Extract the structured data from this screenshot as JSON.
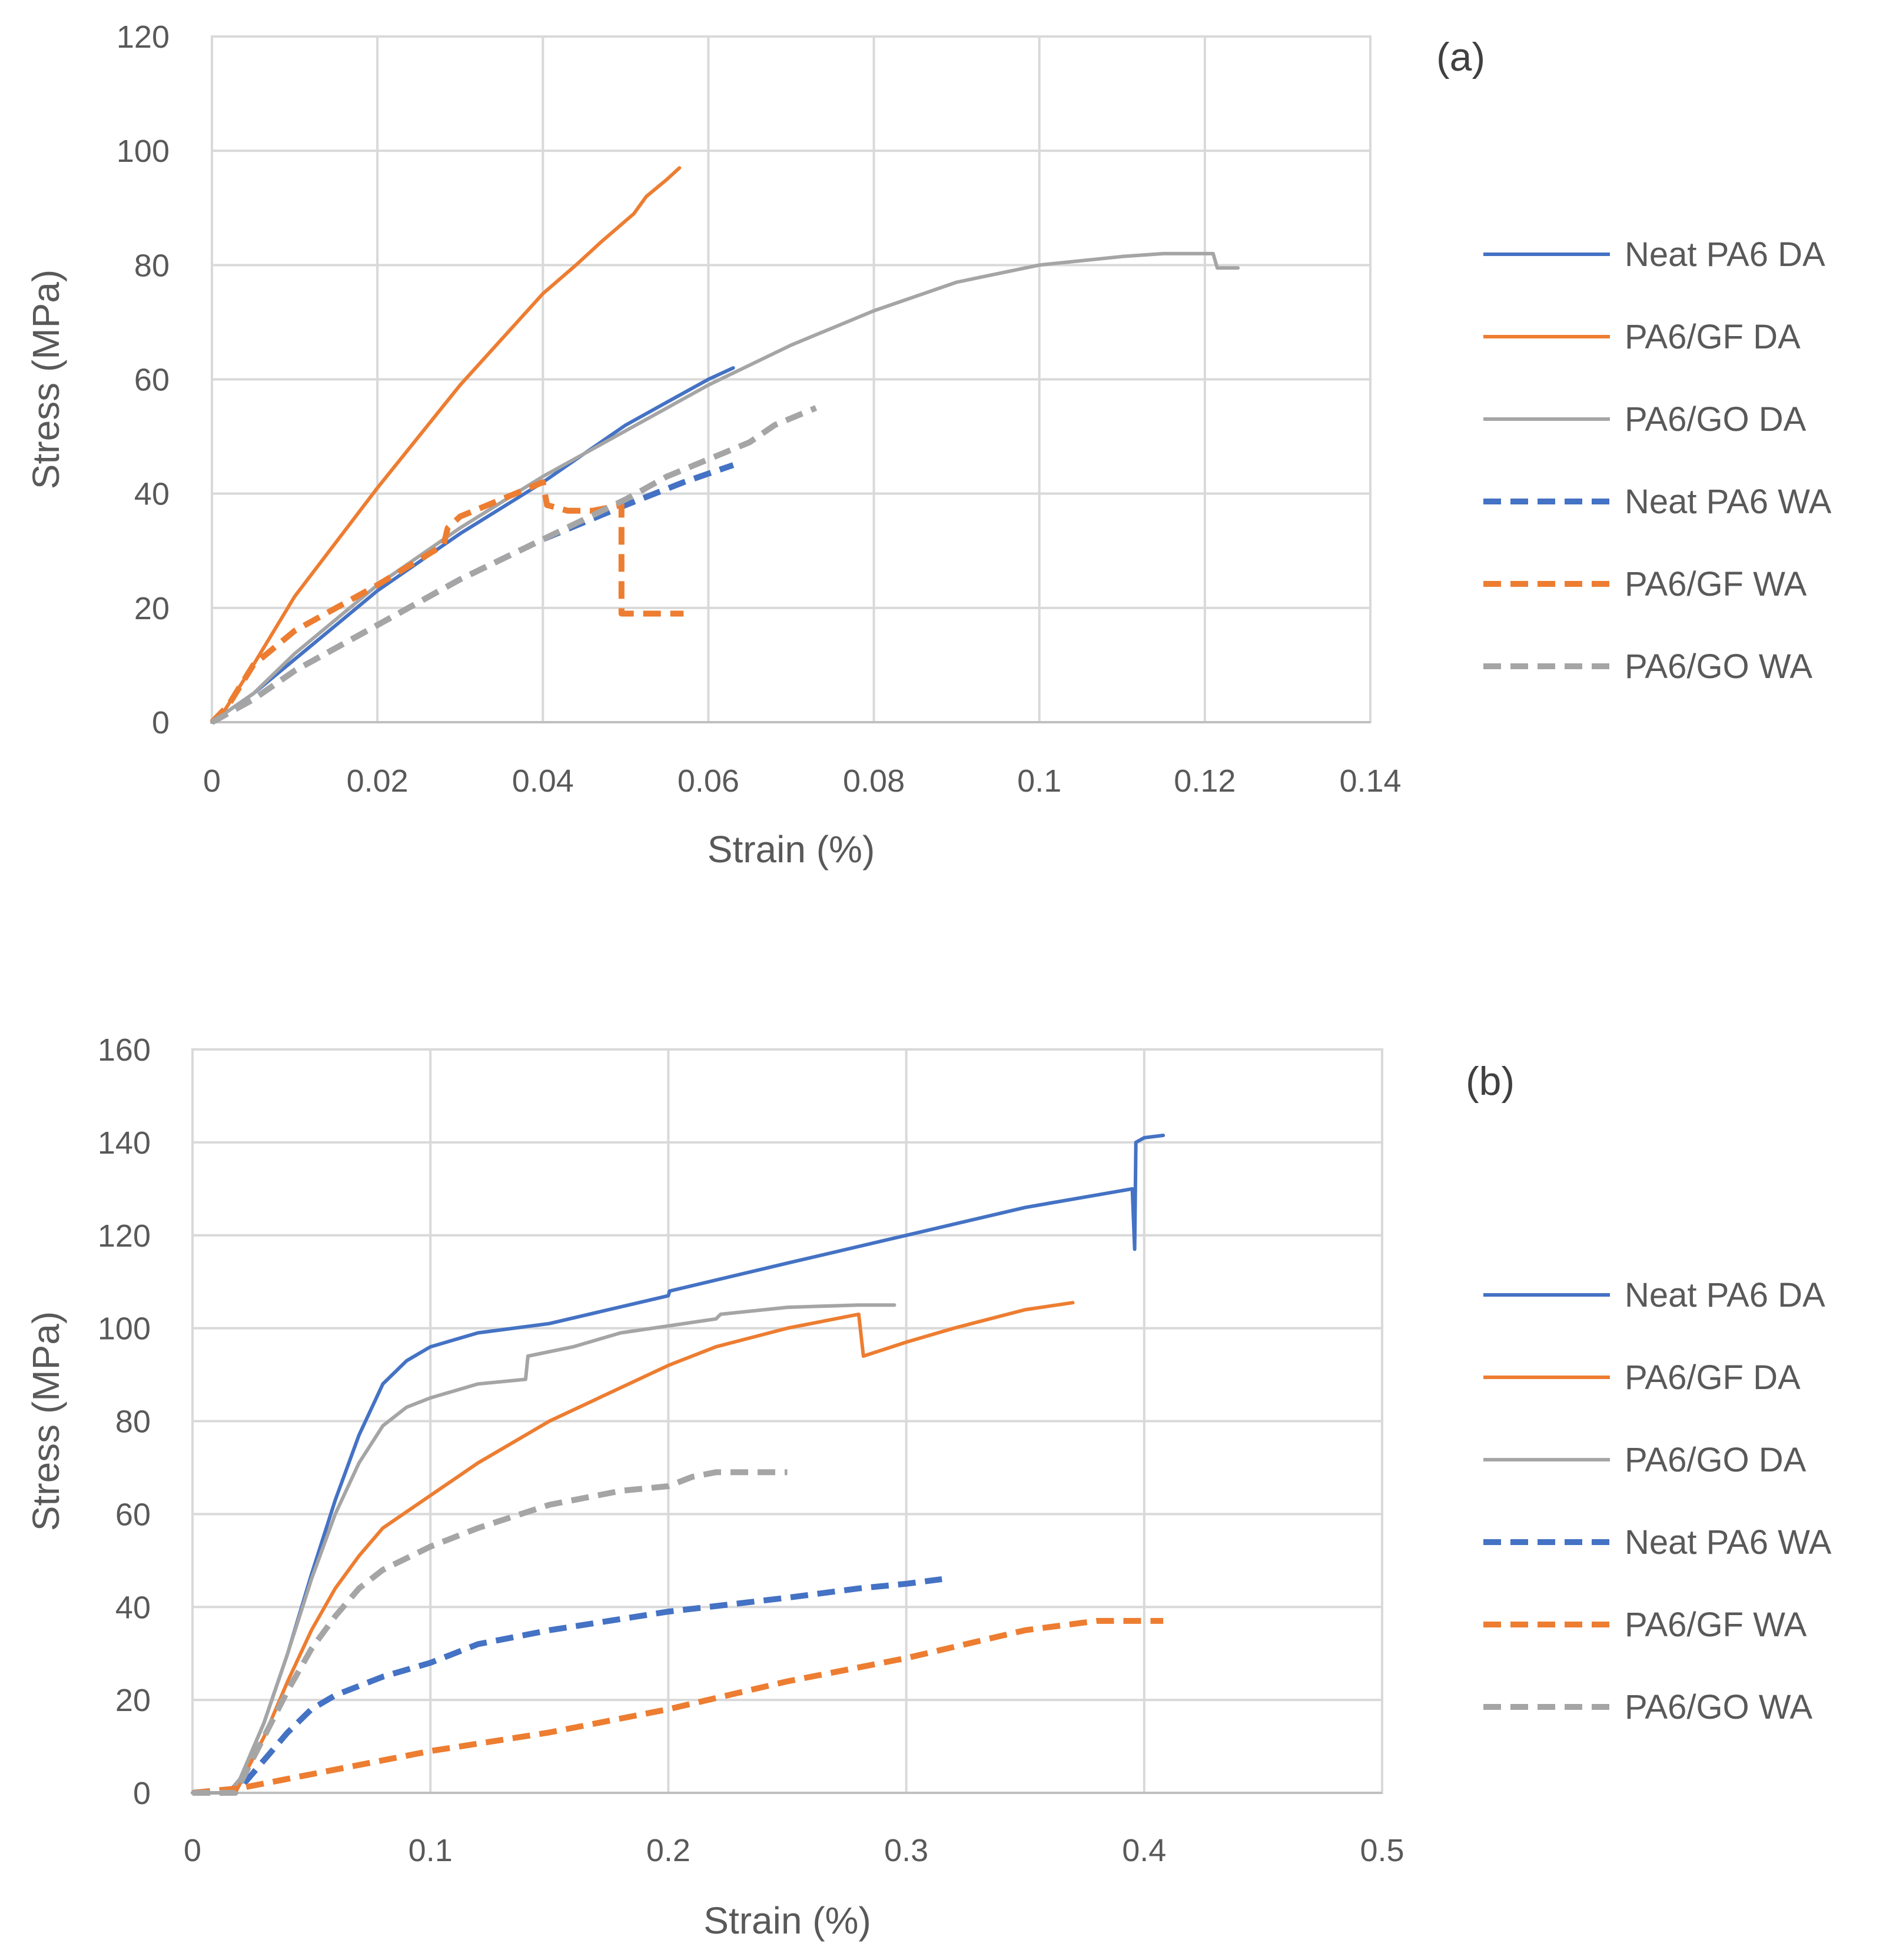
{
  "chart_data": [
    {
      "type": "line",
      "panel_label": "(a)",
      "xlabel": "Strain (%)",
      "ylabel": "Stress (MPa)",
      "xlim": [
        0,
        0.14
      ],
      "ylim": [
        0,
        120
      ],
      "xticks": [
        0,
        0.02,
        0.04,
        0.06,
        0.08,
        0.1,
        0.12,
        0.14
      ],
      "yticks": [
        0,
        20,
        40,
        60,
        80,
        100,
        120
      ],
      "xtick_labels": [
        "0",
        "0.02",
        "0.04",
        "0.06",
        "0.08",
        "0.1",
        "0.12",
        "0.14"
      ],
      "ytick_labels": [
        "0",
        "20",
        "40",
        "60",
        "80",
        "100",
        "120"
      ],
      "grid": true,
      "legend_position": "right",
      "series": [
        {
          "name": "Neat PA6 DA",
          "color": "#4472C4",
          "dash": false,
          "points": [
            [
              0,
              0
            ],
            [
              0.005,
              5
            ],
            [
              0.01,
              11
            ],
            [
              0.015,
              17
            ],
            [
              0.02,
              23
            ],
            [
              0.03,
              33
            ],
            [
              0.04,
              42
            ],
            [
              0.045,
              47
            ],
            [
              0.05,
              52
            ],
            [
              0.055,
              56
            ],
            [
              0.06,
              60
            ],
            [
              0.063,
              62
            ]
          ]
        },
        {
          "name": "PA6/GF DA",
          "color": "#ED7D31",
          "dash": false,
          "points": [
            [
              0,
              0
            ],
            [
              0.0015,
              2
            ],
            [
              0.005,
              10
            ],
            [
              0.01,
              22
            ],
            [
              0.02,
              41
            ],
            [
              0.03,
              59
            ],
            [
              0.04,
              75
            ],
            [
              0.044,
              80
            ],
            [
              0.047,
              84
            ],
            [
              0.051,
              89
            ],
            [
              0.0515,
              90
            ],
            [
              0.0525,
              92
            ],
            [
              0.055,
              95
            ],
            [
              0.0565,
              97
            ]
          ]
        },
        {
          "name": "PA6/GO DA",
          "color": "#A5A5A5",
          "dash": false,
          "points": [
            [
              0,
              0
            ],
            [
              0.005,
              5
            ],
            [
              0.01,
              12
            ],
            [
              0.02,
              24
            ],
            [
              0.03,
              34
            ],
            [
              0.04,
              43
            ],
            [
              0.05,
              51
            ],
            [
              0.06,
              59
            ],
            [
              0.07,
              66
            ],
            [
              0.08,
              72
            ],
            [
              0.09,
              77
            ],
            [
              0.1,
              80
            ],
            [
              0.11,
              81.5
            ],
            [
              0.115,
              82
            ],
            [
              0.121,
              82
            ],
            [
              0.1215,
              79.5
            ],
            [
              0.124,
              79.5
            ]
          ]
        },
        {
          "name": "Neat PA6 WA",
          "color": "#4472C4",
          "dash": true,
          "points": [
            [
              0,
              0
            ],
            [
              0.005,
              4
            ],
            [
              0.01,
              9
            ],
            [
              0.02,
              17
            ],
            [
              0.03,
              25
            ],
            [
              0.04,
              32
            ],
            [
              0.05,
              38
            ],
            [
              0.057,
              42
            ],
            [
              0.063,
              45
            ]
          ]
        },
        {
          "name": "PA6/GF WA",
          "color": "#ED7D31",
          "dash": true,
          "points": [
            [
              0,
              0
            ],
            [
              0.002,
              3
            ],
            [
              0.005,
              10
            ],
            [
              0.01,
              16
            ],
            [
              0.02,
              24
            ],
            [
              0.028,
              31
            ],
            [
              0.0285,
              34
            ],
            [
              0.03,
              36
            ],
            [
              0.035,
              39
            ],
            [
              0.04,
              42
            ],
            [
              0.0405,
              38
            ],
            [
              0.043,
              37
            ],
            [
              0.046,
              37
            ],
            [
              0.0495,
              38
            ],
            [
              0.0495,
              19
            ],
            [
              0.057,
              19
            ]
          ]
        },
        {
          "name": "PA6/GO WA",
          "color": "#A5A5A5",
          "dash": true,
          "points": [
            [
              0,
              0
            ],
            [
              0.005,
              4
            ],
            [
              0.01,
              9
            ],
            [
              0.02,
              17
            ],
            [
              0.03,
              25
            ],
            [
              0.04,
              32
            ],
            [
              0.05,
              39
            ],
            [
              0.055,
              43
            ],
            [
              0.06,
              46
            ],
            [
              0.065,
              49
            ],
            [
              0.068,
              52
            ],
            [
              0.073,
              55
            ]
          ]
        }
      ]
    },
    {
      "type": "line",
      "panel_label": "(b)",
      "xlabel": "Strain (%)",
      "ylabel": "Stress (MPa)",
      "xlim": [
        0,
        0.5
      ],
      "ylim": [
        0,
        160
      ],
      "xticks": [
        0,
        0.1,
        0.2,
        0.3,
        0.4,
        0.5
      ],
      "yticks": [
        0,
        20,
        40,
        60,
        80,
        100,
        120,
        140,
        160
      ],
      "xtick_labels": [
        "0",
        "0.1",
        "0.2",
        "0.3",
        "0.4",
        "0.5"
      ],
      "ytick_labels": [
        "0",
        "20",
        "40",
        "60",
        "80",
        "100",
        "120",
        "140",
        "160"
      ],
      "grid": true,
      "legend_position": "right",
      "series": [
        {
          "name": "Neat PA6 DA",
          "color": "#4472C4",
          "dash": false,
          "points": [
            [
              0,
              0
            ],
            [
              0.015,
              0
            ],
            [
              0.02,
              3
            ],
            [
              0.03,
              15
            ],
            [
              0.04,
              30
            ],
            [
              0.05,
              47
            ],
            [
              0.06,
              63
            ],
            [
              0.07,
              77
            ],
            [
              0.08,
              88
            ],
            [
              0.09,
              93
            ],
            [
              0.1,
              96
            ],
            [
              0.12,
              99
            ],
            [
              0.15,
              101
            ],
            [
              0.2,
              107
            ],
            [
              0.2005,
              108
            ],
            [
              0.25,
              114
            ],
            [
              0.3,
              120
            ],
            [
              0.35,
              126
            ],
            [
              0.395,
              130
            ],
            [
              0.396,
              117
            ],
            [
              0.3965,
              140
            ],
            [
              0.4,
              141
            ],
            [
              0.408,
              141.5
            ]
          ]
        },
        {
          "name": "PA6/GF DA",
          "color": "#ED7D31",
          "dash": false,
          "points": [
            [
              0,
              0
            ],
            [
              0.018,
              0
            ],
            [
              0.03,
              12
            ],
            [
              0.04,
              24
            ],
            [
              0.05,
              35
            ],
            [
              0.06,
              44
            ],
            [
              0.07,
              51
            ],
            [
              0.08,
              57
            ],
            [
              0.1,
              64
            ],
            [
              0.12,
              71
            ],
            [
              0.15,
              80
            ],
            [
              0.2,
              92
            ],
            [
              0.22,
              96
            ],
            [
              0.25,
              100
            ],
            [
              0.27,
              102
            ],
            [
              0.28,
              103
            ],
            [
              0.282,
              94
            ],
            [
              0.3,
              97
            ],
            [
              0.32,
              100
            ],
            [
              0.35,
              104
            ],
            [
              0.37,
              105.5
            ]
          ]
        },
        {
          "name": "PA6/GO DA",
          "color": "#A5A5A5",
          "dash": false,
          "points": [
            [
              0,
              0
            ],
            [
              0.015,
              0
            ],
            [
              0.02,
              3
            ],
            [
              0.03,
              15
            ],
            [
              0.04,
              30
            ],
            [
              0.05,
              46
            ],
            [
              0.06,
              60
            ],
            [
              0.07,
              71
            ],
            [
              0.08,
              79
            ],
            [
              0.09,
              83
            ],
            [
              0.1,
              85
            ],
            [
              0.12,
              88
            ],
            [
              0.14,
              89
            ],
            [
              0.141,
              94
            ],
            [
              0.16,
              96
            ],
            [
              0.18,
              99
            ],
            [
              0.2,
              100.5
            ],
            [
              0.22,
              102
            ],
            [
              0.222,
              103
            ],
            [
              0.25,
              104.5
            ],
            [
              0.28,
              105
            ],
            [
              0.295,
              105
            ]
          ]
        },
        {
          "name": "Neat PA6 WA",
          "color": "#4472C4",
          "dash": true,
          "points": [
            [
              0,
              0
            ],
            [
              0.02,
              1
            ],
            [
              0.03,
              7
            ],
            [
              0.04,
              13
            ],
            [
              0.05,
              18
            ],
            [
              0.06,
              21
            ],
            [
              0.08,
              25
            ],
            [
              0.1,
              28
            ],
            [
              0.12,
              32
            ],
            [
              0.15,
              35
            ],
            [
              0.2,
              39
            ],
            [
              0.25,
              42
            ],
            [
              0.28,
              44
            ],
            [
              0.3,
              45
            ],
            [
              0.315,
              46
            ]
          ]
        },
        {
          "name": "PA6/GF WA",
          "color": "#ED7D31",
          "dash": true,
          "points": [
            [
              0,
              0
            ],
            [
              0.02,
              1
            ],
            [
              0.05,
              4
            ],
            [
              0.1,
              9
            ],
            [
              0.15,
              13
            ],
            [
              0.2,
              18
            ],
            [
              0.25,
              24
            ],
            [
              0.3,
              29
            ],
            [
              0.35,
              35
            ],
            [
              0.38,
              37
            ],
            [
              0.408,
              37
            ]
          ]
        },
        {
          "name": "PA6/GO WA",
          "color": "#A5A5A5",
          "dash": true,
          "points": [
            [
              0,
              0
            ],
            [
              0.018,
              0
            ],
            [
              0.03,
              12
            ],
            [
              0.04,
              22
            ],
            [
              0.05,
              31
            ],
            [
              0.06,
              38
            ],
            [
              0.07,
              44
            ],
            [
              0.08,
              48
            ],
            [
              0.1,
              53
            ],
            [
              0.12,
              57
            ],
            [
              0.15,
              62
            ],
            [
              0.18,
              65
            ],
            [
              0.2,
              66
            ],
            [
              0.21,
              68
            ],
            [
              0.22,
              69
            ],
            [
              0.25,
              69
            ]
          ]
        }
      ]
    }
  ]
}
